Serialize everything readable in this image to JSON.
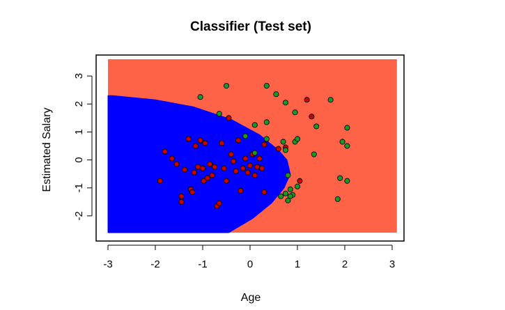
{
  "chart_data": {
    "type": "scatter",
    "title": "Classifier (Test set)",
    "xlabel": "Age",
    "ylabel": "Estimated Salary",
    "xlim": [
      -3,
      3.1
    ],
    "ylim": [
      -2.6,
      3.6
    ],
    "x_ticks": [
      "-3",
      "-2",
      "-1",
      "0",
      "1",
      "2",
      "3"
    ],
    "y_ticks": [
      "-2",
      "-1",
      "0",
      "1",
      "2",
      "3"
    ],
    "grid": false,
    "legend": "none",
    "colors": {
      "region_0": "#0000ff",
      "region_1": "#ff6347",
      "point_0": "#cc0000",
      "point_1": "#1a9a1a",
      "point_edge": "#000000",
      "frame": "#000000"
    },
    "decision_boundary": {
      "description_free": true,
      "points": [
        [
          -2.9,
          2.3
        ],
        [
          -2.0,
          2.15
        ],
        [
          -1.2,
          1.9
        ],
        [
          -0.4,
          1.45
        ],
        [
          0.2,
          0.9
        ],
        [
          0.6,
          0.35
        ],
        [
          0.78,
          0.0
        ],
        [
          0.85,
          -0.5
        ],
        [
          0.72,
          -1.0
        ],
        [
          0.45,
          -1.55
        ],
        [
          0.05,
          -2.1
        ],
        [
          -0.45,
          -2.6
        ]
      ]
    },
    "series": [
      {
        "class": 0,
        "points": [
          [
            -1.9,
            -0.75
          ],
          [
            -1.8,
            0.3
          ],
          [
            -1.65,
            0.05
          ],
          [
            -1.55,
            -0.15
          ],
          [
            -1.45,
            -1.3
          ],
          [
            -1.45,
            -1.5
          ],
          [
            -1.38,
            -0.35
          ],
          [
            -1.3,
            0.75
          ],
          [
            -1.25,
            -1.05
          ],
          [
            -1.22,
            -1.15
          ],
          [
            -1.18,
            -0.45
          ],
          [
            -1.15,
            0.5
          ],
          [
            -1.1,
            -0.25
          ],
          [
            -1.05,
            0.7
          ],
          [
            -1.0,
            -0.3
          ],
          [
            -0.98,
            -0.75
          ],
          [
            -0.95,
            0.6
          ],
          [
            -0.9,
            -0.65
          ],
          [
            -0.85,
            -0.15
          ],
          [
            -0.8,
            -0.55
          ],
          [
            -0.75,
            -0.25
          ],
          [
            -0.7,
            -1.65
          ],
          [
            -0.65,
            -1.55
          ],
          [
            -0.6,
            0.6
          ],
          [
            -0.55,
            -0.3
          ],
          [
            -0.5,
            -0.75
          ],
          [
            -0.4,
            0.2
          ],
          [
            -0.35,
            -0.05
          ],
          [
            -0.3,
            -0.4
          ],
          [
            -0.25,
            0.7
          ],
          [
            -0.2,
            -1.1
          ],
          [
            -0.15,
            -0.3
          ],
          [
            -0.1,
            0.05
          ],
          [
            -0.05,
            -0.45
          ],
          [
            0.0,
            -0.2
          ],
          [
            0.05,
            0.2
          ],
          [
            0.1,
            -0.55
          ],
          [
            0.15,
            -0.25
          ],
          [
            0.2,
            0.05
          ],
          [
            0.25,
            -0.3
          ],
          [
            0.3,
            -1.15
          ],
          [
            0.6,
            0.4
          ],
          [
            0.75,
            0.45
          ],
          [
            1.05,
            -0.75
          ],
          [
            1.3,
            1.55
          ],
          [
            0.3,
            0.55
          ],
          [
            1.2,
            2.15
          ],
          [
            -0.45,
            1.5
          ]
        ]
      },
      {
        "class": 1,
        "points": [
          [
            -1.05,
            2.25
          ],
          [
            -0.5,
            2.65
          ],
          [
            0.35,
            2.65
          ],
          [
            0.55,
            2.35
          ],
          [
            0.75,
            2.05
          ],
          [
            -0.65,
            1.65
          ],
          [
            0.1,
            1.25
          ],
          [
            0.35,
            1.35
          ],
          [
            0.95,
            1.7
          ],
          [
            1.4,
            1.2
          ],
          [
            1.7,
            2.15
          ],
          [
            2.05,
            1.15
          ],
          [
            -0.1,
            0.85
          ],
          [
            0.35,
            0.75
          ],
          [
            0.95,
            0.65
          ],
          [
            1.0,
            0.75
          ],
          [
            1.35,
            0.2
          ],
          [
            1.95,
            0.65
          ],
          [
            2.05,
            0.5
          ],
          [
            0.7,
            0.65
          ],
          [
            0.75,
            0.35
          ],
          [
            0.8,
            -0.55
          ],
          [
            0.85,
            -1.05
          ],
          [
            0.9,
            -1.25
          ],
          [
            1.0,
            -0.95
          ],
          [
            0.85,
            -1.3
          ],
          [
            0.75,
            -1.2
          ],
          [
            0.65,
            -1.3
          ],
          [
            0.8,
            -1.45
          ],
          [
            1.9,
            -0.65
          ],
          [
            2.05,
            -0.75
          ],
          [
            1.85,
            -1.4
          ],
          [
            0.1,
            0.25
          ]
        ]
      }
    ]
  }
}
